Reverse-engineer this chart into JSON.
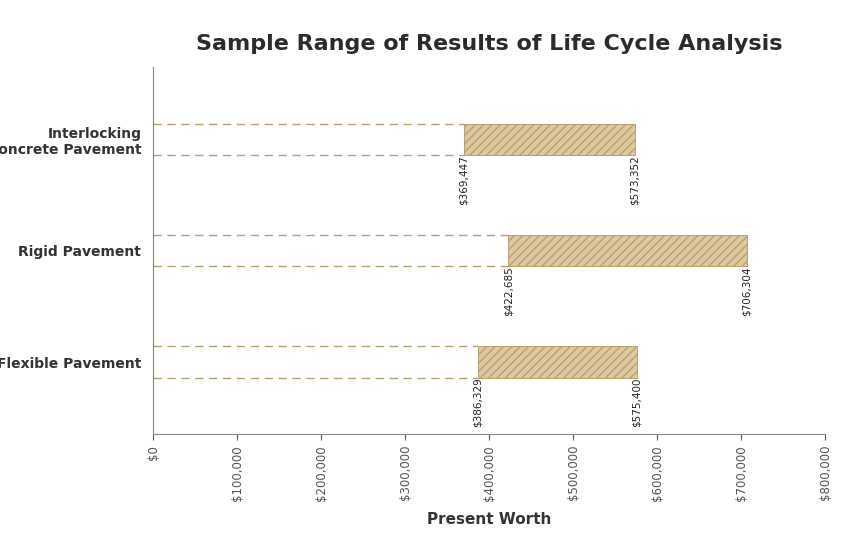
{
  "title": "Sample Range of Results of Life Cycle Analysis",
  "xlabel": "Present Worth",
  "categories": [
    "Flexible Pavement",
    "Rigid Pavement",
    "Interlocking\nConcrete Pavement"
  ],
  "bar_starts": [
    386329,
    422685,
    369447
  ],
  "bar_ends": [
    575400,
    706304,
    573352
  ],
  "bar_labels_left": [
    "$386,329",
    "$422,685",
    "$369,447"
  ],
  "bar_labels_right": [
    "$575,400",
    "$706,304",
    "$573,352"
  ],
  "xlim": [
    0,
    800000
  ],
  "xticks": [
    0,
    100000,
    200000,
    300000,
    400000,
    500000,
    600000,
    700000,
    800000
  ],
  "xtick_labels": [
    "$0",
    "$100,000",
    "$200,000",
    "$300,000",
    "$400,000",
    "$500,000",
    "$600,000",
    "$700,000",
    "$800,000"
  ],
  "bar_color": "#ddc9a0",
  "bar_hatch": "////",
  "bar_edge_color": "#b8a070",
  "whisker_color": "#b8a070",
  "whisker_linestyle": "--",
  "background_color": "#ffffff",
  "title_fontsize": 16,
  "ylabel_fontsize": 11,
  "xlabel_fontsize": 11,
  "tick_fontsize": 8.5,
  "ytick_fontsize": 10,
  "bar_height": 0.28,
  "bar_annotation_fontsize": 7.5,
  "bar_gap": 0.08,
  "ylim_bottom": -0.65,
  "ylim_top": 2.65
}
